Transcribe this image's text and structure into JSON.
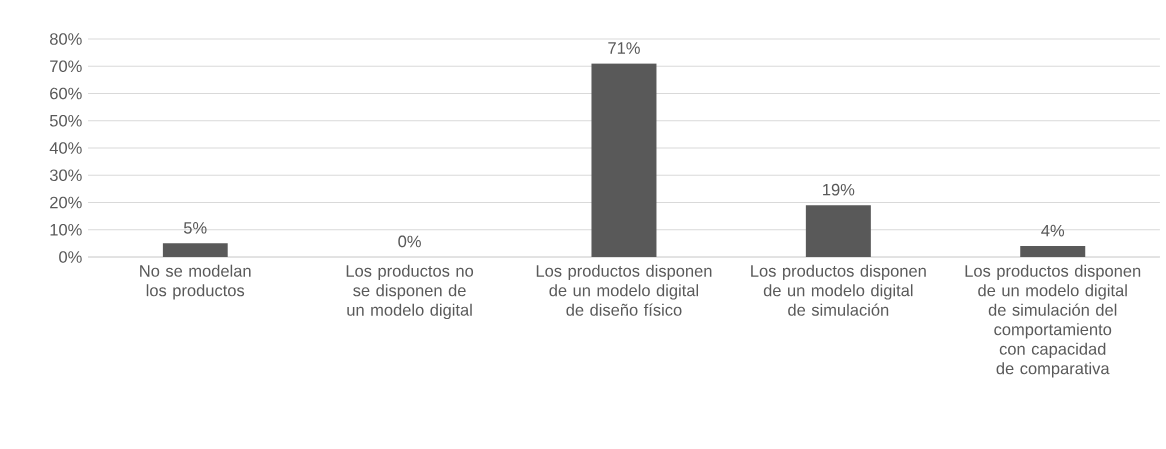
{
  "chart_data": {
    "type": "bar",
    "categories": [
      "No se modelan los productos",
      "Los productos no se disponen de un modelo digital",
      "Los productos disponen de un modelo digital de diseño físico",
      "Los productos disponen de un modelo digital de simulación",
      "Los productos disponen de un modelo digital de simulación del comportamiento con capacidad de comparativa"
    ],
    "values": [
      5,
      0,
      71,
      19,
      4
    ],
    "value_labels": [
      "5%",
      "0%",
      "71%",
      "19%",
      "4%"
    ],
    "color": "#595959",
    "ylim": [
      0,
      80
    ],
    "yticks": [
      {
        "value": 0,
        "label": "0%"
      },
      {
        "value": 10,
        "label": "10%"
      },
      {
        "value": 20,
        "label": "20%"
      },
      {
        "value": 30,
        "label": "30%"
      },
      {
        "value": 40,
        "label": "40%"
      },
      {
        "value": 50,
        "label": "50%"
      },
      {
        "value": 60,
        "label": "60%"
      },
      {
        "value": 70,
        "label": "70%"
      },
      {
        "value": 80,
        "label": "80%"
      }
    ],
    "grid": "y"
  }
}
